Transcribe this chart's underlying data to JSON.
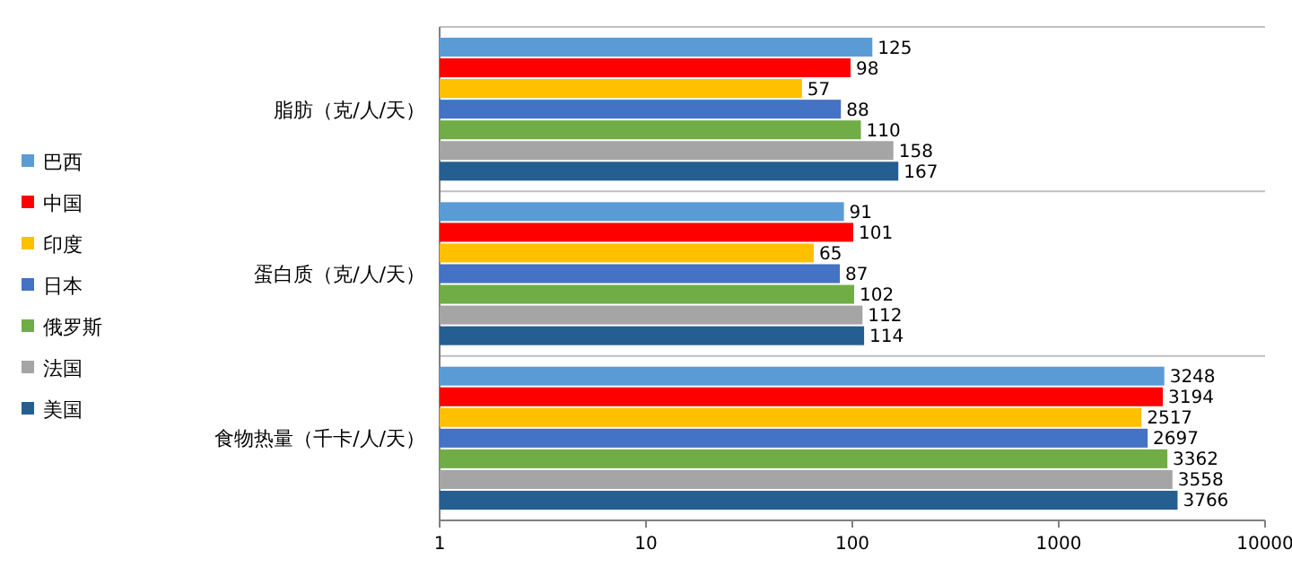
{
  "chart_data": {
    "type": "bar",
    "orientation": "horizontal",
    "log": "x",
    "categories": [
      "脂肪（克/人/天）",
      "蛋白质（克/人/天）",
      "食物热量（千卡/人/天）"
    ],
    "series": [
      {
        "name": "巴西",
        "color": "#5b9bd5",
        "values": [
          125,
          91,
          3248
        ]
      },
      {
        "name": "中国",
        "color": "#ff0000",
        "values": [
          98,
          101,
          3194
        ]
      },
      {
        "name": "印度",
        "color": "#ffc000",
        "values": [
          57,
          65,
          2517
        ]
      },
      {
        "name": "日本",
        "color": "#4472c4",
        "values": [
          88,
          87,
          2697
        ]
      },
      {
        "name": "俄罗斯",
        "color": "#70ad47",
        "values": [
          110,
          102,
          3362
        ]
      },
      {
        "name": "法国",
        "color": "#a5a5a5",
        "values": [
          158,
          112,
          3558
        ]
      },
      {
        "name": "美国",
        "color": "#255e91",
        "values": [
          167,
          114,
          3766
        ]
      }
    ],
    "xlim": [
      1,
      10000
    ],
    "xticks": [
      1,
      10,
      100,
      1000,
      10000
    ],
    "data_labels": true,
    "legend": "left",
    "grid": "y"
  }
}
